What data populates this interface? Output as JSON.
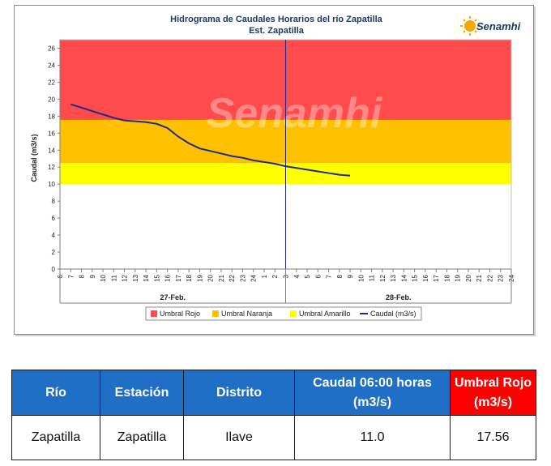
{
  "colors": {
    "umbral_rojo": "#ff4b4b",
    "umbral_naranja": "#ffc000",
    "umbral_amarillo": "#ffff00",
    "caudal_line": "#1f2a8a",
    "table_header": "#1f6fc6",
    "table_header_alert": "#ff0000"
  },
  "logo": {
    "text": "Senamhi",
    "icon": "sun-icon"
  },
  "watermark": "Senamhi",
  "chart_data": {
    "type": "line",
    "title": "Hidrograma de Caudales Horarios del río Zapatilla",
    "subtitle": "Est. Zapatilla",
    "ylabel": "Caudal  (m3/s)",
    "ylim": [
      0,
      27
    ],
    "yticks": [
      0,
      2,
      4,
      6,
      8,
      10,
      12,
      14,
      16,
      18,
      20,
      22,
      24,
      26
    ],
    "x_tick_labels": [
      "6",
      "7",
      "8",
      "9",
      "10",
      "11",
      "12",
      "13",
      "14",
      "15",
      "16",
      "17",
      "18",
      "19",
      "20",
      "21",
      "22",
      "23",
      "24",
      "1",
      "2",
      "3",
      "4",
      "5",
      "6",
      "7",
      "8",
      "9",
      "10",
      "11",
      "12",
      "13",
      "14",
      "15",
      "16",
      "17",
      "18",
      "19",
      "20",
      "21",
      "22",
      "23",
      "24"
    ],
    "day_labels": [
      "27-Feb.",
      "28-Feb."
    ],
    "day_divider_after_tick": 21,
    "thresholds": [
      {
        "name": "Umbral Rojo",
        "from": 17.56,
        "to": 27
      },
      {
        "name": "Umbral Naranja",
        "from": 12.5,
        "to": 17.56
      },
      {
        "name": "Umbral Amarillo",
        "from": 10,
        "to": 12.5
      }
    ],
    "series": [
      {
        "name": "Caudal (m3/s)",
        "x_index": [
          1,
          2,
          3,
          4,
          5,
          6,
          7,
          8,
          9,
          10,
          11,
          12,
          13,
          14,
          15,
          16,
          17,
          18,
          19,
          20,
          21,
          22,
          23,
          24,
          25,
          26,
          27
        ],
        "values": [
          19.4,
          19.0,
          18.6,
          18.2,
          17.8,
          17.5,
          17.4,
          17.3,
          17.1,
          16.6,
          15.6,
          14.8,
          14.2,
          13.9,
          13.6,
          13.3,
          13.1,
          12.8,
          12.6,
          12.4,
          12.1,
          11.9,
          11.7,
          11.5,
          11.3,
          11.1,
          11.0
        ]
      }
    ],
    "legend": [
      "Umbral Rojo",
      "Umbral Naranja",
      "Umbral Amarillo",
      "Caudal (m3/s)"
    ],
    "legend_position": "bottom"
  },
  "table": {
    "headers": [
      "Río",
      "Estación",
      "Distrito",
      "Caudal  06:00 horas (m3/s)",
      "Umbral Rojo (m3/s)"
    ],
    "rows": [
      [
        "Zapatilla",
        "Zapatilla",
        "Ilave",
        "11.0",
        "17.56"
      ]
    ]
  }
}
